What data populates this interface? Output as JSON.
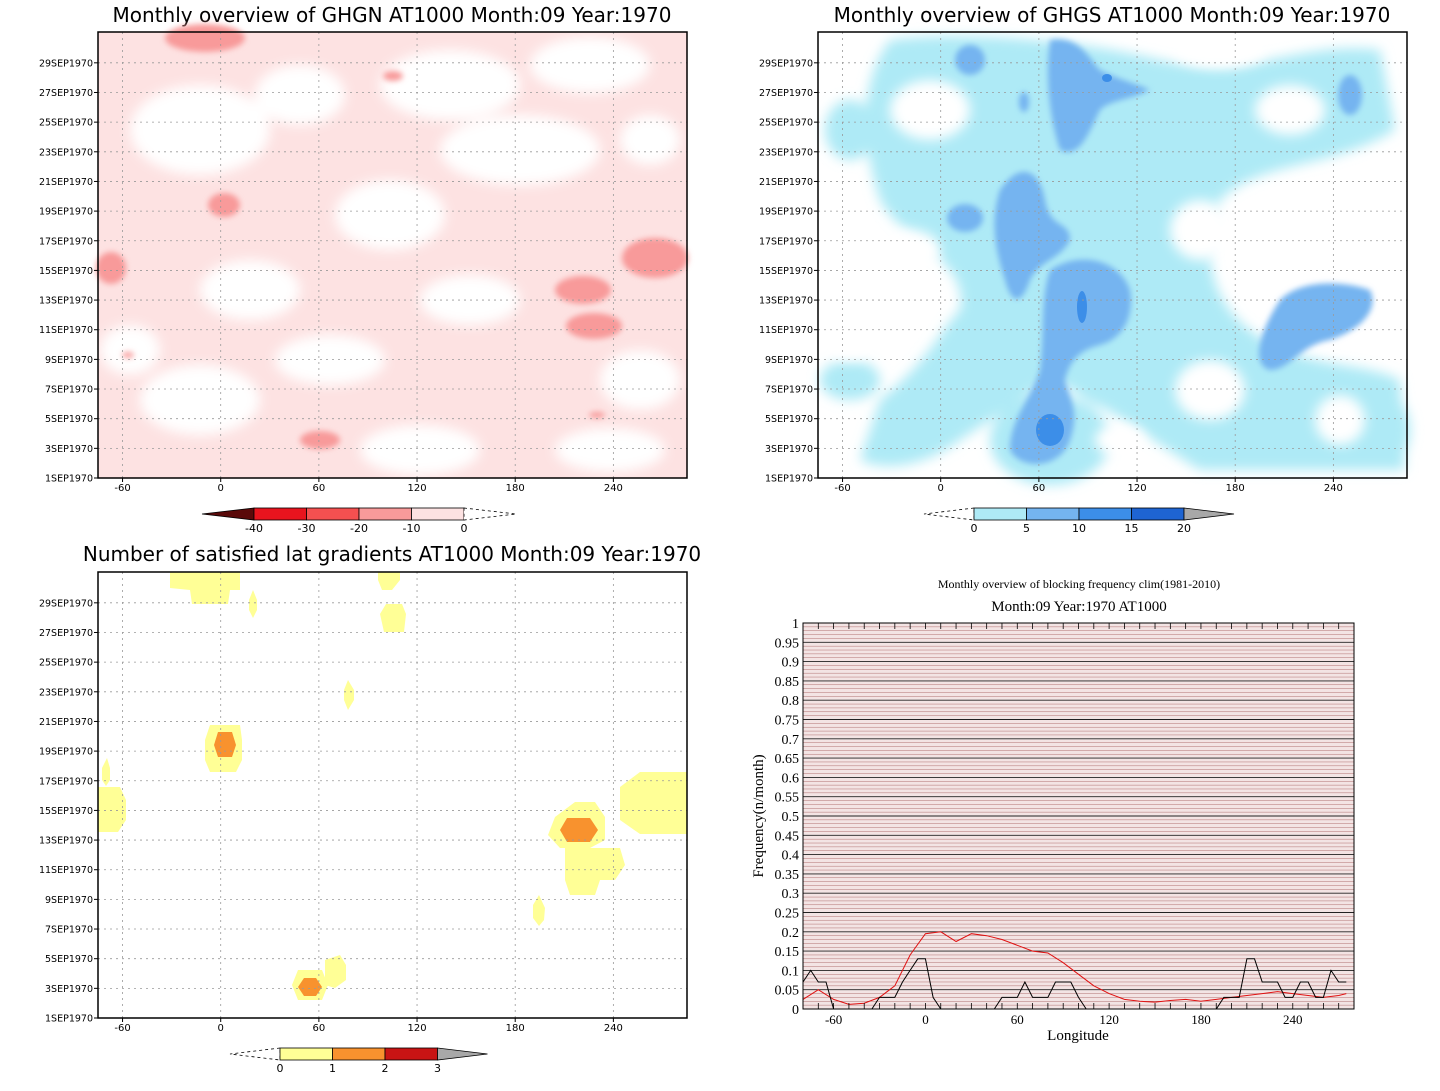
{
  "date_labels": [
    "1SEP1970",
    "3SEP1970",
    "5SEP1970",
    "7SEP1970",
    "9SEP1970",
    "11SEP1970",
    "13SEP1970",
    "15SEP1970",
    "17SEP1970",
    "19SEP1970",
    "21SEP1970",
    "23SEP1970",
    "25SEP1970",
    "27SEP1970",
    "29SEP1970"
  ],
  "lon_ticks": [
    "-60",
    "0",
    "60",
    "120",
    "180",
    "240"
  ],
  "chart_data": [
    {
      "type": "heatmap",
      "title": "Monthly overview of GHGN AT1000 Month:09 Year:1970",
      "x_range": [
        -75,
        285
      ],
      "y_range": [
        "1SEP1970",
        "30SEP1970"
      ],
      "colorbar": {
        "ticks": [
          "-40",
          "-30",
          "-20",
          "-10",
          "0"
        ],
        "colors": [
          "#5a0a0a",
          "#e8141e",
          "#f55050",
          "#f89a9a",
          "#fde2e2",
          "#ffffff"
        ]
      },
      "regions": [
        {
          "value": "-20 to -10",
          "lon": -5,
          "day": 19
        },
        {
          "value": "-20 to -10",
          "lon": -70,
          "day": 15
        },
        {
          "value": "-20 to -10",
          "lon": 265,
          "day": 15
        },
        {
          "value": "-20 to -10",
          "lon": 215,
          "day": 14
        },
        {
          "value": "-20 to -10",
          "lon": 225,
          "day": 11
        },
        {
          "value": "-20 to -10",
          "lon": 58,
          "day": 3
        },
        {
          "value": "-20 to -10",
          "lon": 0,
          "day": 30
        },
        {
          "value": "-20 to -10",
          "lon": 98,
          "day": 27
        }
      ]
    },
    {
      "type": "heatmap",
      "title": "Monthly overview of GHGS AT1000 Month:09 Year:1970",
      "x_range": [
        -75,
        285
      ],
      "y_range": [
        "1SEP1970",
        "30SEP1970"
      ],
      "colorbar": {
        "ticks": [
          "0",
          "5",
          "10",
          "15",
          "20"
        ],
        "colors": [
          "#ffffff",
          "#aeeaf6",
          "#74b4f0",
          "#3c8ee8",
          "#1e64d2",
          "#a8a8a8"
        ]
      },
      "regions": [
        {
          "value": "10 to 15",
          "lon": 70,
          "day": 13
        },
        {
          "value": "10 to 15",
          "lon": 55,
          "day": 4
        },
        {
          "value": "5 to 10",
          "lon": 85,
          "day": 26
        },
        {
          "value": "5 to 10",
          "lon": 60,
          "day": 19
        },
        {
          "value": "5 to 10",
          "lon": 230,
          "day": 11
        }
      ]
    },
    {
      "type": "heatmap",
      "title": "Number of satisfied lat gradients AT1000 Month:09 Year:1970",
      "x_range": [
        -75,
        285
      ],
      "y_range": [
        "1SEP1970",
        "30SEP1970"
      ],
      "colorbar": {
        "ticks": [
          "0",
          "1",
          "2",
          "3"
        ],
        "colors": [
          "#ffffff",
          "#ffff96",
          "#f8922e",
          "#c81414",
          "#a8a8a8"
        ]
      },
      "regions": [
        {
          "value": "1 to 2",
          "lon": -2,
          "day": 19
        },
        {
          "value": "1 to 2",
          "lon": 215,
          "day": 13
        },
        {
          "value": "1 to 2",
          "lon": 50,
          "day": 3
        },
        {
          "value": "0 to 1",
          "lon": 265,
          "day": 15
        },
        {
          "value": "0 to 1",
          "lon": -70,
          "day": 15
        },
        {
          "value": "0 to 1",
          "lon": 225,
          "day": 11
        },
        {
          "value": "0 to 1",
          "lon": 100,
          "day": 27
        },
        {
          "value": "0 to 1",
          "lon": -20,
          "day": 30
        }
      ]
    },
    {
      "type": "line",
      "title": "Monthly overview of blocking frequency clim(1981-2010)",
      "subtitle": "Month:09 Year:1970  AT1000",
      "xlabel": "Longitude",
      "ylabel": "Frequency(n/month)",
      "x_ticks": [
        "-60",
        "0",
        "60",
        "120",
        "180",
        "240"
      ],
      "y_ticks": [
        "0",
        "0.05",
        "0.1",
        "0.15",
        "0.2",
        "0.25",
        "0.3",
        "0.35",
        "0.4",
        "0.45",
        "0.5",
        "0.55",
        "0.6",
        "0.65",
        "0.7",
        "0.75",
        "0.8",
        "0.85",
        "0.9",
        "0.95",
        "1"
      ],
      "xlim": [
        -80,
        280
      ],
      "ylim": [
        0,
        1
      ],
      "series": [
        {
          "color": "#e01010",
          "x": [
            -80,
            -70,
            -60,
            -50,
            -40,
            -30,
            -20,
            -10,
            0,
            10,
            20,
            30,
            40,
            50,
            60,
            70,
            80,
            90,
            100,
            110,
            120,
            130,
            140,
            150,
            160,
            170,
            180,
            190,
            200,
            210,
            220,
            230,
            240,
            250,
            260,
            270,
            275
          ],
          "y": [
            0.025,
            0.05,
            0.025,
            0.012,
            0.015,
            0.03,
            0.06,
            0.14,
            0.195,
            0.2,
            0.175,
            0.195,
            0.19,
            0.18,
            0.165,
            0.15,
            0.145,
            0.12,
            0.09,
            0.06,
            0.04,
            0.025,
            0.02,
            0.018,
            0.022,
            0.025,
            0.02,
            0.025,
            0.03,
            0.035,
            0.04,
            0.045,
            0.04,
            0.035,
            0.03,
            0.035,
            0.04
          ]
        },
        {
          "color": "#000000",
          "x": [
            -80,
            -75,
            -70,
            -65,
            -60,
            -55,
            -50,
            -45,
            -40,
            -35,
            -30,
            -25,
            -20,
            -15,
            -10,
            -5,
            0,
            5,
            10,
            15,
            20,
            25,
            30,
            35,
            40,
            45,
            50,
            55,
            60,
            65,
            70,
            75,
            80,
            85,
            90,
            95,
            100,
            105,
            110,
            115,
            120,
            125,
            130,
            135,
            140,
            145,
            150,
            155,
            160,
            165,
            170,
            175,
            180,
            185,
            190,
            195,
            200,
            205,
            210,
            215,
            220,
            225,
            230,
            235,
            240,
            245,
            250,
            255,
            260,
            265,
            270,
            275
          ],
          "y": [
            0.07,
            0.1,
            0.07,
            0.07,
            0,
            0,
            0,
            0,
            0,
            0,
            0.03,
            0.03,
            0.03,
            0.07,
            0.1,
            0.13,
            0.13,
            0.03,
            0,
            0,
            0,
            0,
            0,
            0,
            0,
            0,
            0.03,
            0.03,
            0.03,
            0.07,
            0.03,
            0.03,
            0.03,
            0.07,
            0.07,
            0.07,
            0.03,
            0,
            0,
            0,
            0,
            0,
            0,
            0,
            0,
            0,
            0,
            0,
            0,
            0,
            0,
            0,
            0,
            0,
            0,
            0.03,
            0.03,
            0.03,
            0.13,
            0.13,
            0.07,
            0.07,
            0.07,
            0.03,
            0.03,
            0.07,
            0.07,
            0.03,
            0.03,
            0.1,
            0.07,
            0.07
          ]
        }
      ]
    }
  ]
}
